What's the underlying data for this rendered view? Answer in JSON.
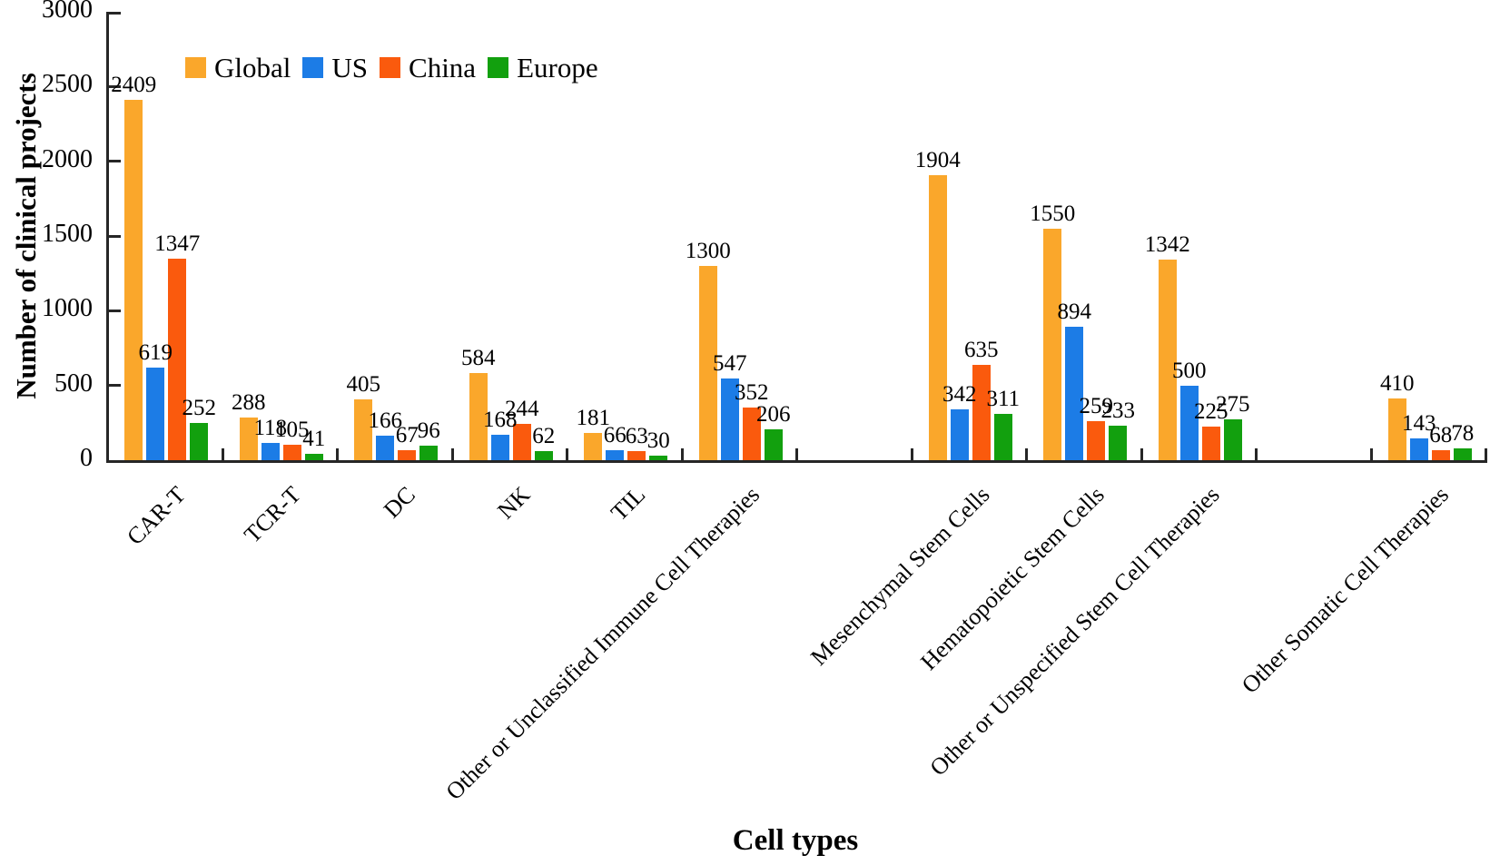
{
  "figure": {
    "background": "#ffffff",
    "text_color": "#000000",
    "axis_color": "#262626"
  },
  "chart_data": {
    "type": "bar",
    "title": "",
    "xlabel": "Cell types",
    "ylabel": "Number of clinical projects",
    "ylim": [
      0,
      3000
    ],
    "yticks": [
      0,
      500,
      1000,
      1500,
      2000,
      2500,
      3000
    ],
    "grid": false,
    "bar_value_labels": true,
    "categories": [
      "CAR-T",
      "TCR-T",
      "DC",
      "NK",
      "TIL",
      "Other or Unclassified Immune Cell Therapies",
      "Mesenchymal Stem Cells",
      "Hematopoietic Stem Cells",
      "Other or Unspecified Stem Cell Therapies",
      "Other Somatic Cell Therapies"
    ],
    "series": [
      {
        "name": "Global",
        "color": "#FAA72B",
        "values": [
          2409,
          288,
          405,
          584,
          181,
          1300,
          1904,
          1550,
          1342,
          410
        ]
      },
      {
        "name": "US",
        "color": "#1C7CE6",
        "values": [
          619,
          118,
          166,
          168,
          66,
          547,
          342,
          894,
          500,
          143
        ]
      },
      {
        "name": "China",
        "color": "#FA5A0D",
        "values": [
          1347,
          105,
          67,
          244,
          63,
          352,
          635,
          259,
          225,
          68
        ]
      },
      {
        "name": "Europe",
        "color": "#12A00E",
        "values": [
          252,
          41,
          96,
          62,
          30,
          206,
          311,
          233,
          275,
          78
        ]
      }
    ],
    "layout_hints": {
      "legend_position": "top-left-inside",
      "slot_count": 12,
      "category_slots": [
        0,
        1,
        2,
        3,
        4,
        5,
        7,
        8,
        9,
        11
      ],
      "category_label_rotation_deg": 45,
      "x_ticks_at": "category-boundaries",
      "ticks_direction": "inside"
    }
  }
}
